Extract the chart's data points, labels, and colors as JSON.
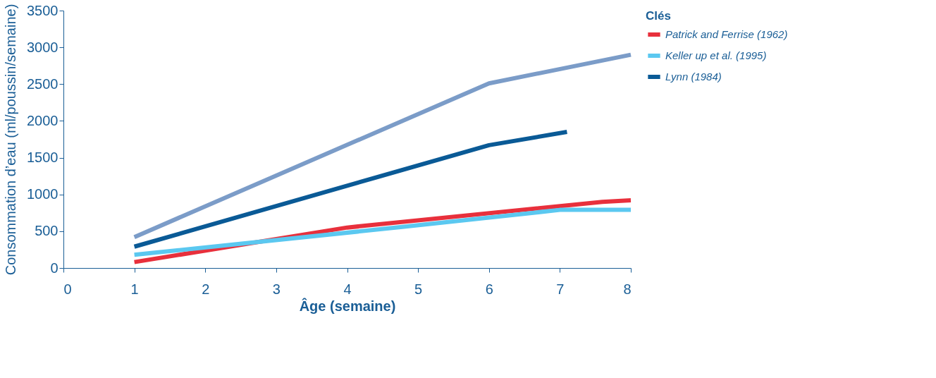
{
  "chart_data": {
    "type": "line",
    "xlabel": "Âge (semaine)",
    "ylabel": "Consommation d’eau (ml/poussin/semaine)",
    "legend_title": "Clés",
    "legend": "right",
    "grid": false,
    "marker": "none",
    "line_style": "solid",
    "xlim": [
      0,
      8
    ],
    "xticks": [
      0,
      1,
      2,
      3,
      4,
      5,
      6,
      7,
      8
    ],
    "ylim": [
      0,
      3500
    ],
    "yticks": [
      0,
      500,
      1000,
      1500,
      2000,
      2500,
      3000,
      3500
    ],
    "series": [
      {
        "name": "Patrick and Ferrise (1962)",
        "color": "#e8303c",
        "x": [
          1,
          4,
          7.6,
          8
        ],
        "values": [
          80,
          550,
          900,
          920
        ]
      },
      {
        "name": "Keller up et al. (1995)",
        "color": "#5bc8f0",
        "x": [
          1,
          4.8,
          7,
          8
        ],
        "values": [
          180,
          560,
          790,
          790
        ]
      },
      {
        "name": "Lynn (1984)",
        "color": "#0a5a96",
        "x": [
          1,
          6,
          7.1
        ],
        "values": [
          290,
          1670,
          1850
        ]
      },
      {
        "color": "#7b9cc8",
        "x": [
          1,
          6,
          8
        ],
        "values": [
          420,
          2510,
          2900
        ]
      }
    ]
  }
}
